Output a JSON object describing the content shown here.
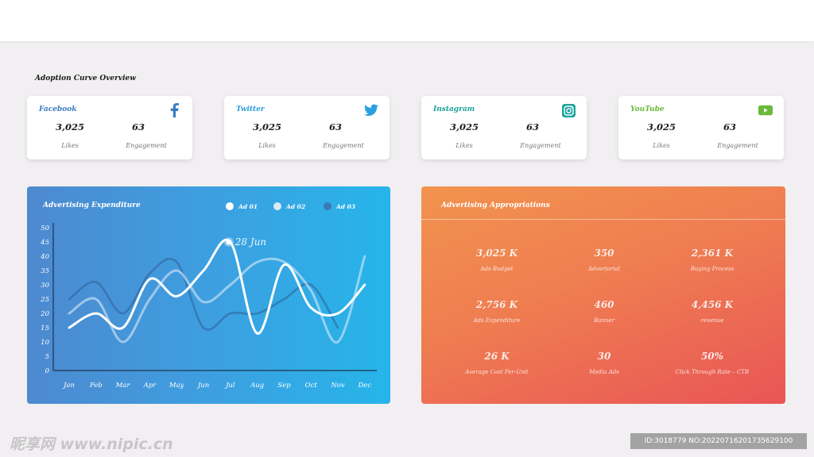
{
  "section_title": "Adoption Curve Overview",
  "cards": [
    {
      "name": "Facebook",
      "icon": "facebook-icon",
      "color": "#3b7bbf",
      "likes": "3,025",
      "engagement": "63",
      "likes_label": "Likes",
      "engagement_label": "Engagement"
    },
    {
      "name": "Twitter",
      "icon": "twitter-icon",
      "color": "#2b9fe0",
      "likes": "3,025",
      "engagement": "63",
      "likes_label": "Likes",
      "engagement_label": "Engagement"
    },
    {
      "name": "Instagram",
      "icon": "instagram-icon",
      "color": "#1aa39a",
      "likes": "3,025",
      "engagement": "63",
      "likes_label": "Likes",
      "engagement_label": "Engagement"
    },
    {
      "name": "YouTube",
      "icon": "youtube-icon",
      "color": "#6aba3a",
      "likes": "3,025",
      "engagement": "63",
      "likes_label": "Likes",
      "engagement_label": "Engagement"
    }
  ],
  "expenditure": {
    "title": "Advertising Expenditure",
    "legend": [
      {
        "name": "Ad 01",
        "color": "#ffffff"
      },
      {
        "name": "Ad 02",
        "color": "#dbe9f8"
      },
      {
        "name": "Ad 03",
        "color": "#3a78b4"
      }
    ],
    "annotation": "28 Jun"
  },
  "chart_data": {
    "type": "line",
    "title": "Advertising Expenditure",
    "categories": [
      "Jan",
      "Feb",
      "Mar",
      "Apr",
      "May",
      "Jun",
      "Jul",
      "Aug",
      "Sep",
      "Oct",
      "Nov",
      "Dec"
    ],
    "y_ticks": [
      0,
      5,
      10,
      15,
      20,
      25,
      30,
      35,
      40,
      45,
      50
    ],
    "ylim": [
      0,
      50
    ],
    "grid": false,
    "legend_position": "top-right",
    "annotation": {
      "label": "28 Jun",
      "x": "Jul",
      "y": 45
    },
    "series": [
      {
        "name": "Ad 01",
        "values": [
          15,
          20,
          15,
          32,
          26,
          35,
          45,
          13,
          37,
          22,
          20,
          30
        ]
      },
      {
        "name": "Ad 02",
        "values": [
          20,
          25,
          10,
          25,
          35,
          24,
          30,
          38,
          38,
          28,
          10,
          40
        ]
      },
      {
        "name": "Ad 03",
        "values": [
          25,
          31,
          20,
          34,
          38,
          15,
          20,
          20,
          25,
          30,
          15,
          null
        ]
      }
    ]
  },
  "appropriations": {
    "title": "Advertising Appropriations",
    "metrics": [
      {
        "value": "3,025 K",
        "label": "Ads Budget"
      },
      {
        "value": "350",
        "label": "Advertorial"
      },
      {
        "value": "2,361 K",
        "label": "Buying Process"
      },
      {
        "value": "2,756 K",
        "label": "Ads Expenditure"
      },
      {
        "value": "460",
        "label": "Banner"
      },
      {
        "value": "4,456 K",
        "label": "revenue"
      },
      {
        "value": "26 K",
        "label": "Average Cost Per-Unit"
      },
      {
        "value": "30",
        "label": "Media Ads"
      },
      {
        "value": "50%",
        "label": "Click Through Rate – CTR"
      }
    ]
  },
  "watermark": {
    "left": "昵享网 www.nipic.cn",
    "right": "ID:3018779 NO:20220716201735629100"
  }
}
